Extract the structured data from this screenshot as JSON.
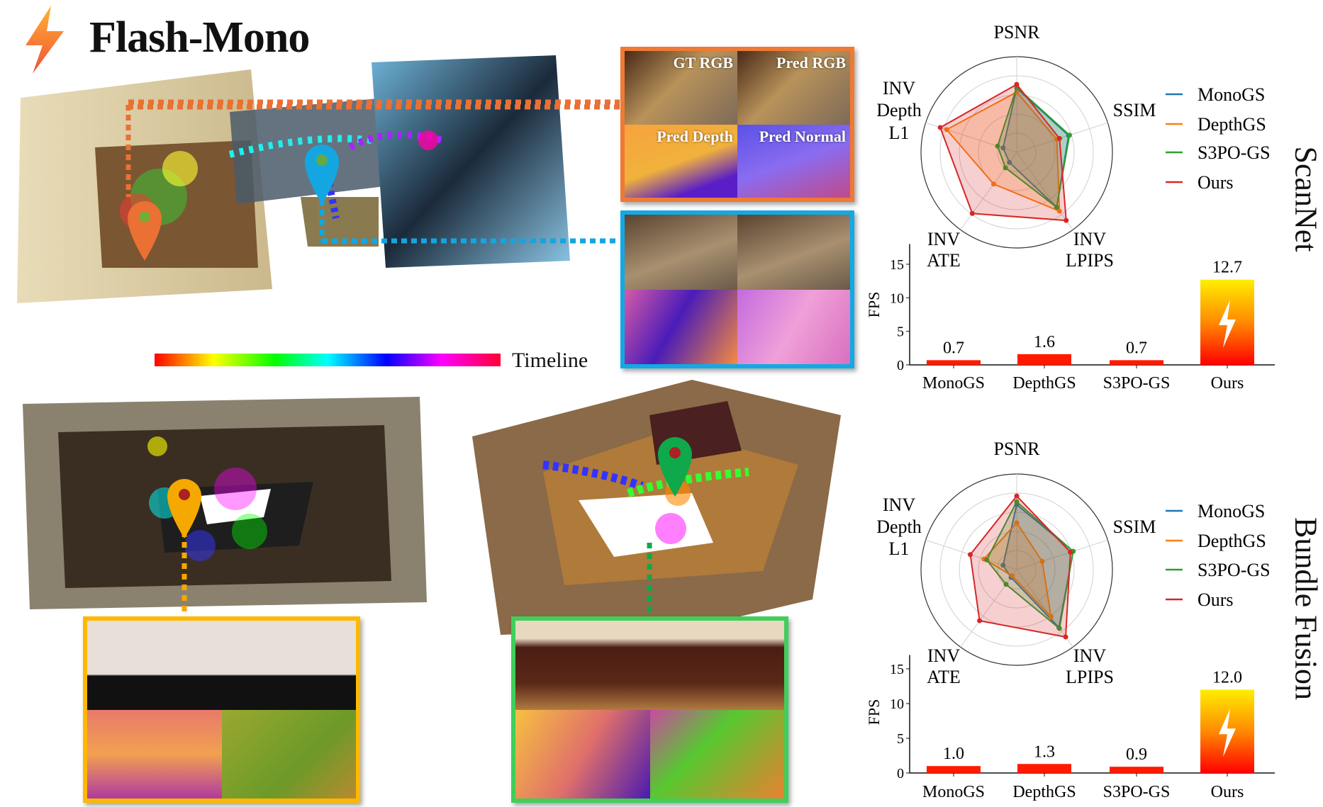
{
  "title": "Flash-Mono",
  "timeline_label": "Timeline",
  "panel_labels": [
    "GT RGB",
    "Pred RGB",
    "Pred Depth",
    "Pred Normal"
  ],
  "panel_colors": {
    "orange": "#ee7a35",
    "blue": "#12a9e6",
    "yellow": "#ffb800",
    "green": "#3fcf5a"
  },
  "pin_colors": {
    "scannet_1": "#ea7033",
    "scannet_2": "#13a6e0",
    "bundle_1": "#f5a800",
    "bundle_2": "#0fa84a"
  },
  "dataset_titles": [
    "ScanNet",
    "Bundle Fusion"
  ],
  "chart_data": [
    {
      "type": "radar",
      "dataset": "ScanNet",
      "axes": [
        "PSNR",
        "SSIM",
        "INV LPIPS",
        "INV ATE",
        "INV Depth L1"
      ],
      "range": [
        0,
        1
      ],
      "grid": true,
      "legend": "right",
      "series": [
        {
          "name": "MonoGS",
          "color": "#1f77b4",
          "values": [
            0.67,
            0.57,
            0.71,
            0.13,
            0.15
          ]
        },
        {
          "name": "DepthGS",
          "color": "#ff7f0e",
          "values": [
            0.63,
            0.44,
            0.76,
            0.41,
            0.77
          ]
        },
        {
          "name": "S3PO-GS",
          "color": "#2ca02c",
          "values": [
            0.68,
            0.58,
            0.71,
            0.2,
            0.21
          ]
        },
        {
          "name": "Ours",
          "color": "#d62728",
          "values": [
            0.71,
            0.47,
            0.88,
            0.79,
            0.84
          ]
        }
      ]
    },
    {
      "type": "bar",
      "dataset": "ScanNet",
      "ylabel": "FPS",
      "ylim": [
        0,
        18
      ],
      "yticks": [
        0,
        5,
        10,
        15
      ],
      "categories": [
        "MonoGS",
        "DepthGS",
        "S3PO-GS",
        "Ours"
      ],
      "values": [
        0.7,
        1.6,
        0.7,
        12.7
      ],
      "data_labels": [
        "0.7",
        "1.6",
        "0.7",
        "12.7"
      ]
    },
    {
      "type": "radar",
      "dataset": "Bundle Fusion",
      "axes": [
        "PSNR",
        "SSIM",
        "INV LPIPS",
        "INV ATE",
        "INV Depth L1"
      ],
      "range": [
        0,
        1
      ],
      "grid": true,
      "legend": "right",
      "series": [
        {
          "name": "MonoGS",
          "color": "#1f77b4",
          "values": [
            0.68,
            0.62,
            0.75,
            0.1,
            0.15
          ]
        },
        {
          "name": "DepthGS",
          "color": "#ff7f0e",
          "values": [
            0.49,
            0.28,
            0.61,
            0.08,
            0.36
          ]
        },
        {
          "name": "S3PO-GS",
          "color": "#2ca02c",
          "values": [
            0.71,
            0.62,
            0.76,
            0.19,
            0.33
          ]
        },
        {
          "name": "Ours",
          "color": "#d62728",
          "values": [
            0.77,
            0.59,
            0.87,
            0.66,
            0.51
          ]
        }
      ]
    },
    {
      "type": "bar",
      "dataset": "Bundle Fusion",
      "ylabel": "FPS",
      "ylim": [
        0,
        17
      ],
      "yticks": [
        0,
        5,
        10,
        15
      ],
      "categories": [
        "MonoGS",
        "DepthGS",
        "S3PO-GS",
        "Ours"
      ],
      "values": [
        1.0,
        1.3,
        0.9,
        12.0
      ],
      "data_labels": [
        "1.0",
        "1.3",
        "0.9",
        "12.0"
      ]
    }
  ]
}
